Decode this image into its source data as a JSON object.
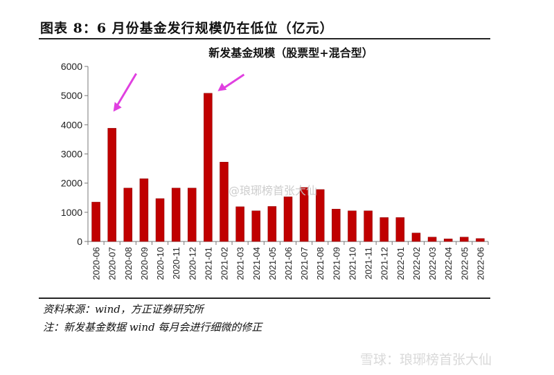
{
  "figure_title": "图表 8：6 月份基金发行规模仍在低位（亿元）",
  "source_note": "资料来源：wind，方正证券研究所",
  "footnote": "注：新发基金数据 wind 每月会进行细微的修正",
  "watermarks": [
    "@琅琊榜首张大仙",
    "雪球：琅琊榜首张大仙"
  ],
  "chart_data": {
    "type": "bar",
    "title": "新发基金规模（股票型+混合型）",
    "xlabel": "",
    "ylabel": "",
    "ylim": [
      0,
      6000
    ],
    "yticks": [
      0,
      1000,
      2000,
      3000,
      4000,
      5000,
      6000
    ],
    "bar_color": "#C00000",
    "annotation_color": "#E040E0",
    "annotations": [
      "arrow pointing to 2020-07",
      "arrow pointing to 2021-01"
    ],
    "grid": false,
    "categories": [
      "2020-06",
      "2020-07",
      "2020-08",
      "2020-09",
      "2020-10",
      "2020-11",
      "2020-12",
      "2021-01",
      "2021-02",
      "2021-03",
      "2021-04",
      "2021-05",
      "2021-06",
      "2021-07",
      "2021-08",
      "2021-09",
      "2021-10",
      "2021-11",
      "2021-12",
      "2022-01",
      "2022-02",
      "2022-03",
      "2022-04",
      "2022-05",
      "2022-06"
    ],
    "values": [
      1350,
      3880,
      1830,
      2150,
      1470,
      1830,
      1830,
      5080,
      2720,
      1190,
      1050,
      1200,
      1530,
      1850,
      1780,
      1110,
      1050,
      1050,
      820,
      820,
      290,
      150,
      90,
      150,
      100
    ]
  }
}
